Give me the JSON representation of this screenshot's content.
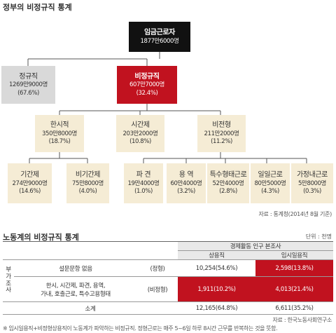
{
  "title": "정부의 비정규직 통계",
  "chart1": {
    "root": {
      "name": "임금근로자",
      "value": "1877만6000명"
    },
    "regular": {
      "name": "정규직",
      "value": "1269만9000명",
      "pct": "(67.6%)"
    },
    "irregular": {
      "name": "비정규직",
      "value": "607만7000명",
      "pct": "(32.4%)"
    },
    "temporary": {
      "name": "한시적",
      "value": "350만8000명",
      "pct": "(18.7%)"
    },
    "parttime": {
      "name": "시간제",
      "value": "203만2000명",
      "pct": "(10.8%)"
    },
    "atypical": {
      "name": "비전형",
      "value": "211만2000명",
      "pct": "(11.2%)"
    },
    "fixed_term": {
      "name": "기간제",
      "value": "274만9000명",
      "pct": "(14.6%)"
    },
    "non_fixed": {
      "name": "비기간제",
      "value": "75만8000명",
      "pct": "(4.0%)"
    },
    "dispatch": {
      "name": "파 견",
      "value": "19만4000명",
      "pct": "(1.0%)"
    },
    "service": {
      "name": "용 역",
      "value": "60만4000명",
      "pct": "(3.2%)"
    },
    "special": {
      "name": "특수형태근로",
      "value": "52만4000명",
      "pct": "(2.8%)"
    },
    "daily": {
      "name": "일일근로",
      "value": "80만5000명",
      "pct": "(4.3%)"
    },
    "domestic": {
      "name": "가정내근로",
      "value": "5만8000명",
      "pct": "(0.3%)"
    },
    "source": "자료 : 통계청(2014년 8월 기준)"
  },
  "table_section": {
    "title": "노동계의 비정규직 통계",
    "unit": "단위 : 천명",
    "header": "경제활동 인구 본조사",
    "col_regular": "상용직",
    "col_temp": "임시일용직",
    "side_label": [
      "부",
      "가",
      "조",
      "사"
    ],
    "row1": {
      "label": "설문문항 없음",
      "type": "(정형)",
      "regular": "10,254(54.6%)",
      "temp": "2,598(13.8%)"
    },
    "row2": {
      "label1": "한시, 시간제, 파견, 용역,",
      "label2": "가내, 호출근로, 특수고용형태",
      "type": "(비정형)",
      "regular": "1,911(10.2%)",
      "temp": "4,013(21.4%)"
    },
    "total": {
      "label": "소계",
      "regular": "12,165(64.8%)",
      "temp": "6,611(35.2%)"
    },
    "source": "자료 : 한국노동사회연구소",
    "footnote": "※ 임시일용직+비정형상용직이 노동계가 파악하는 비정규직. 정형근로는 매주 5~6일 하루 8시간 근무를 반복하는 것을 뜻함."
  }
}
